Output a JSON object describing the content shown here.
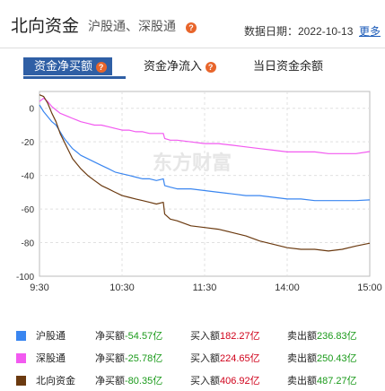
{
  "header": {
    "title": "北向资金",
    "subtitle": "沪股通、深股通",
    "date_label": "数据日期：2022-10-13",
    "more": "更多"
  },
  "tabs": [
    {
      "label": "资金净买额",
      "active": true
    },
    {
      "label": "资金净流入",
      "active": false
    },
    {
      "label": "当日资金余额",
      "active": false
    }
  ],
  "watermark": "东方财富",
  "chart_data": {
    "type": "line",
    "x_ticks": [
      "9:30",
      "10:30",
      "11:30",
      "14:00",
      "15:00"
    ],
    "y_ticks": [
      "0",
      "-20",
      "-40",
      "-60",
      "-80",
      "-100"
    ],
    "ylim": [
      -100,
      10
    ],
    "series": [
      {
        "name": "沪股通",
        "color": "#3a86f0",
        "x": [
          0,
          3,
          6,
          9,
          12,
          15,
          18,
          21,
          24,
          27,
          30,
          35,
          40,
          45,
          50,
          55,
          60,
          65,
          70,
          75,
          80,
          85,
          90,
          91,
          95,
          100,
          110,
          120,
          130,
          140,
          150,
          160,
          170,
          180,
          190,
          200,
          210,
          220,
          230,
          240
        ],
        "y": [
          2,
          -2,
          -5,
          -8,
          -10,
          -14,
          -18,
          -21,
          -24,
          -26,
          -28,
          -30,
          -32,
          -34,
          -36,
          -38,
          -39,
          -40,
          -41,
          -42,
          -42,
          -43,
          -42,
          -46,
          -47,
          -48,
          -48,
          -49,
          -50,
          -51,
          -52,
          -52,
          -53,
          -54,
          -54,
          -55,
          -55,
          -55,
          -55,
          -54.57
        ]
      },
      {
        "name": "深股通",
        "color": "#f25af0",
        "x": [
          0,
          3,
          6,
          9,
          12,
          15,
          18,
          21,
          24,
          27,
          30,
          35,
          40,
          45,
          50,
          55,
          60,
          65,
          70,
          75,
          80,
          85,
          90,
          91,
          95,
          100,
          110,
          120,
          130,
          140,
          150,
          160,
          170,
          180,
          190,
          200,
          210,
          220,
          230,
          240
        ],
        "y": [
          4,
          6,
          4,
          1,
          -1,
          -3,
          -4,
          -5,
          -6,
          -7,
          -8,
          -9,
          -10,
          -10,
          -11,
          -12,
          -13,
          -13,
          -14,
          -14,
          -15,
          -15,
          -15,
          -18,
          -19,
          -19,
          -20,
          -21,
          -21,
          -22,
          -23,
          -24,
          -25,
          -26,
          -26,
          -26,
          -27,
          -27,
          -27,
          -25.78
        ]
      },
      {
        "name": "北向资金",
        "color": "#6b3a10",
        "x": [
          0,
          3,
          6,
          9,
          12,
          15,
          18,
          21,
          24,
          27,
          30,
          35,
          40,
          45,
          50,
          55,
          60,
          65,
          70,
          75,
          80,
          85,
          90,
          91,
          95,
          100,
          110,
          120,
          130,
          140,
          150,
          160,
          170,
          180,
          190,
          200,
          210,
          220,
          230,
          240
        ],
        "y": [
          8,
          7,
          3,
          -3,
          -8,
          -15,
          -20,
          -25,
          -30,
          -33,
          -36,
          -40,
          -43,
          -46,
          -48,
          -50,
          -52,
          -53,
          -54,
          -55,
          -56,
          -57,
          -56,
          -63,
          -66,
          -67,
          -70,
          -71,
          -72,
          -74,
          -76,
          -79,
          -81,
          -83,
          -84,
          -84,
          -85,
          -84,
          -82,
          -80.35
        ]
      }
    ]
  },
  "legend": [
    {
      "name": "沪股通",
      "color": "#3a86f0",
      "net_label": "净买额",
      "net_value": "-54.57亿",
      "buy_label": "买入额",
      "buy_value": "182.27亿",
      "sell_label": "卖出额",
      "sell_value": "236.83亿"
    },
    {
      "name": "深股通",
      "color": "#f25af0",
      "net_label": "净买额",
      "net_value": "-25.78亿",
      "buy_label": "买入额",
      "buy_value": "224.65亿",
      "sell_label": "卖出额",
      "sell_value": "250.43亿"
    },
    {
      "name": "北向资金",
      "color": "#6b3a10",
      "net_label": "净买额",
      "net_value": "-80.35亿",
      "buy_label": "买入额",
      "buy_value": "406.92亿",
      "sell_label": "卖出额",
      "sell_value": "487.27亿"
    }
  ]
}
